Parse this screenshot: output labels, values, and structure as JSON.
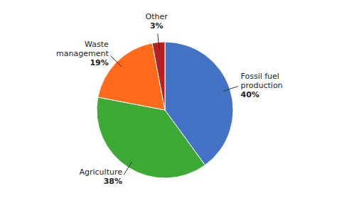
{
  "chart_data": {
    "type": "pie",
    "categories": [
      "Fossil fuel\nproduction",
      "Agriculture",
      "Waste\nmanagement",
      "Other"
    ],
    "values": [
      40,
      38,
      19,
      3
    ],
    "value_labels": [
      "40%",
      "38%",
      "19%",
      "3%"
    ],
    "colors": [
      "#4472C4",
      "#3DAA35",
      "#FF6B1A",
      "#B22222"
    ]
  }
}
